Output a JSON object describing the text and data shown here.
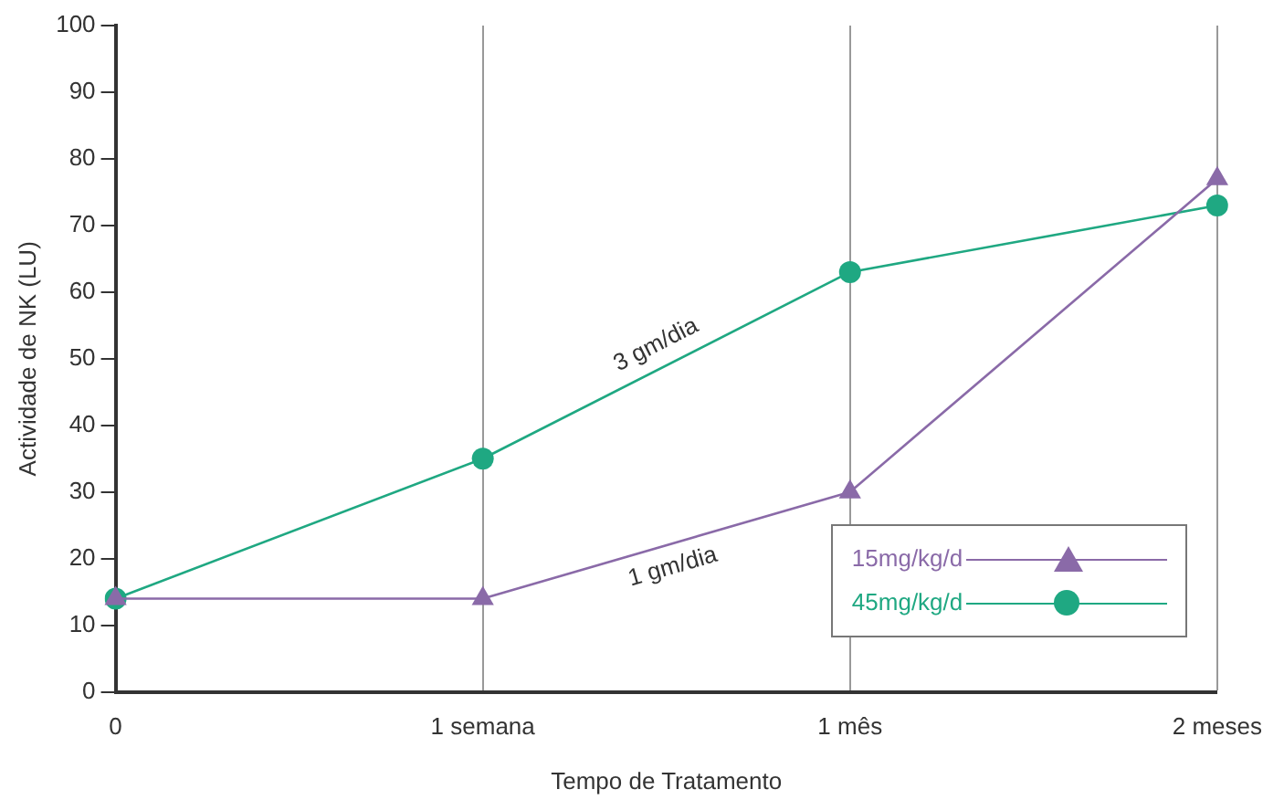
{
  "chart_data": {
    "type": "line",
    "xlabel": "Tempo de Tratamento",
    "ylabel": "Actividade de NK (LU)",
    "categories": [
      "0",
      "1 semana",
      "1 mês",
      "2 meses"
    ],
    "series": [
      {
        "name": "15mg/kg/d",
        "color": "#8a6aa8",
        "marker": "triangle",
        "values": [
          14,
          14,
          30,
          77
        ]
      },
      {
        "name": "45mg/kg/d",
        "color": "#1fa882",
        "marker": "circle",
        "values": [
          14,
          35,
          63,
          73
        ]
      }
    ],
    "ylim": [
      0,
      100
    ],
    "yticks": [
      0,
      10,
      20,
      30,
      40,
      50,
      60,
      70,
      80,
      90,
      100
    ],
    "grid": "x",
    "legend": "bottom right",
    "annotations": [
      "1 gm/dia",
      "3 gm/dia"
    ]
  }
}
